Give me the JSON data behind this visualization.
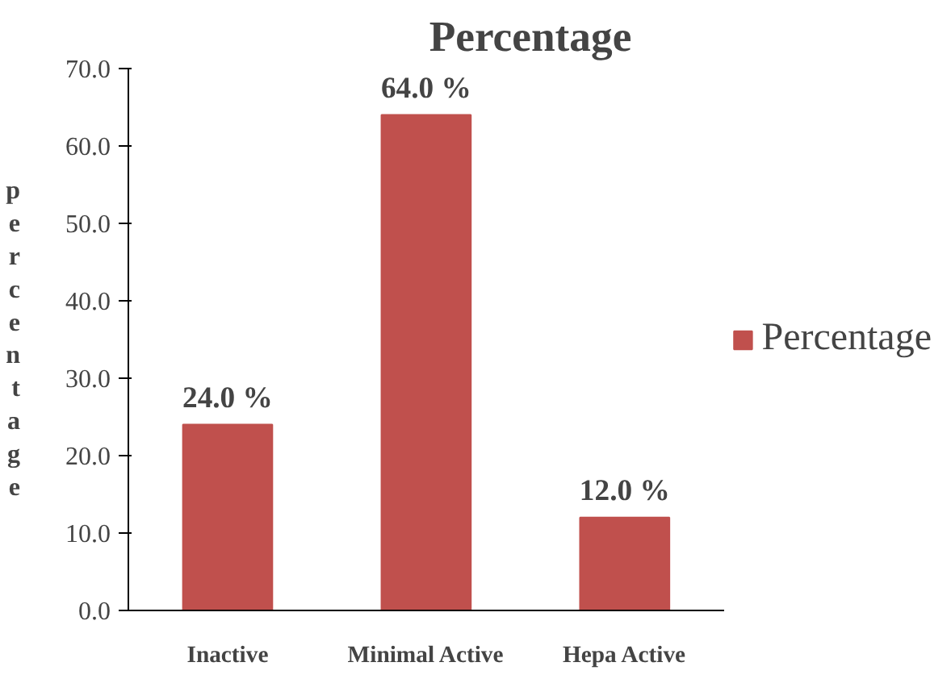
{
  "chart_data": {
    "type": "bar",
    "title": "Percentage",
    "ylabel": "percentage",
    "categories": [
      "Inactive",
      "Minimal Active",
      "Hepa Active"
    ],
    "series": [
      {
        "name": "Percentage",
        "color": "#c0504d",
        "values": [
          24.0,
          64.0,
          12.0
        ]
      }
    ],
    "value_labels": [
      "24.0 %",
      "64.0 %",
      "12.0 %"
    ],
    "ylim": [
      0,
      70
    ],
    "yticks": [
      {
        "value": 0,
        "label": "0.0"
      },
      {
        "value": 10,
        "label": "10.0"
      },
      {
        "value": 20,
        "label": "20.0"
      },
      {
        "value": 30,
        "label": "30.0"
      },
      {
        "value": 40,
        "label": "40.0"
      },
      {
        "value": 50,
        "label": "50.0"
      },
      {
        "value": 60,
        "label": "60.0"
      },
      {
        "value": 70,
        "label": "70.0"
      }
    ],
    "grid": false,
    "legend": "right"
  }
}
